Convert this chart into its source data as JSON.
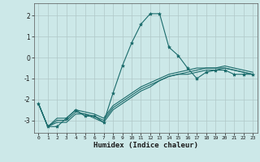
{
  "xlabel": "Humidex (Indice chaleur)",
  "ylabel": "",
  "xlim": [
    -0.5,
    23.5
  ],
  "ylim": [
    -3.6,
    2.6
  ],
  "bg_color": "#cce8e8",
  "grid_color": "#b0c8c8",
  "line_color": "#1a6b6b",
  "xticks": [
    0,
    1,
    2,
    3,
    4,
    5,
    6,
    7,
    8,
    9,
    10,
    11,
    12,
    13,
    14,
    15,
    16,
    17,
    18,
    19,
    20,
    21,
    22,
    23
  ],
  "yticks": [
    -3,
    -2,
    -1,
    0,
    1,
    2
  ],
  "curves": [
    {
      "x": [
        0,
        1,
        2,
        3,
        4,
        5,
        6,
        7,
        8,
        9,
        10,
        11,
        12,
        13,
        14,
        15,
        16,
        17,
        18,
        19,
        20,
        21,
        22,
        23
      ],
      "y": [
        -2.2,
        -3.3,
        -3.3,
        -2.9,
        -2.5,
        -2.8,
        -2.8,
        -3.1,
        -1.7,
        -0.4,
        0.7,
        1.6,
        2.1,
        2.1,
        0.5,
        0.1,
        -0.5,
        -1.0,
        -0.7,
        -0.6,
        -0.6,
        -0.8,
        -0.8,
        -0.8
      ],
      "marker": "*",
      "style": "-"
    },
    {
      "x": [
        0,
        1,
        2,
        3,
        4,
        5,
        6,
        7,
        8,
        9,
        10,
        11,
        12,
        13,
        14,
        15,
        16,
        17,
        18,
        19,
        20,
        21,
        22,
        23
      ],
      "y": [
        -2.2,
        -3.3,
        -2.9,
        -2.9,
        -2.5,
        -2.6,
        -2.7,
        -2.9,
        -2.3,
        -2.0,
        -1.7,
        -1.4,
        -1.2,
        -1.0,
        -0.8,
        -0.7,
        -0.6,
        -0.5,
        -0.5,
        -0.5,
        -0.5,
        -0.6,
        -0.7,
        -0.8
      ],
      "marker": null,
      "style": "-"
    },
    {
      "x": [
        0,
        1,
        2,
        3,
        4,
        5,
        6,
        7,
        8,
        9,
        10,
        11,
        12,
        13,
        14,
        15,
        16,
        17,
        18,
        19,
        20,
        21,
        22,
        23
      ],
      "y": [
        -2.2,
        -3.3,
        -3.0,
        -3.0,
        -2.6,
        -2.7,
        -2.8,
        -3.0,
        -2.4,
        -2.1,
        -1.8,
        -1.5,
        -1.3,
        -1.1,
        -0.9,
        -0.8,
        -0.7,
        -0.6,
        -0.5,
        -0.5,
        -0.4,
        -0.5,
        -0.6,
        -0.7
      ],
      "marker": null,
      "style": "-"
    },
    {
      "x": [
        0,
        1,
        2,
        3,
        4,
        5,
        6,
        7,
        8,
        9,
        10,
        11,
        12,
        13,
        14,
        15,
        16,
        17,
        18,
        19,
        20,
        21,
        22,
        23
      ],
      "y": [
        -2.2,
        -3.3,
        -3.1,
        -3.1,
        -2.7,
        -2.7,
        -2.9,
        -3.1,
        -2.5,
        -2.2,
        -1.9,
        -1.6,
        -1.4,
        -1.1,
        -0.9,
        -0.8,
        -0.8,
        -0.7,
        -0.6,
        -0.6,
        -0.5,
        -0.6,
        -0.7,
        -0.8
      ],
      "marker": null,
      "style": "-"
    }
  ]
}
